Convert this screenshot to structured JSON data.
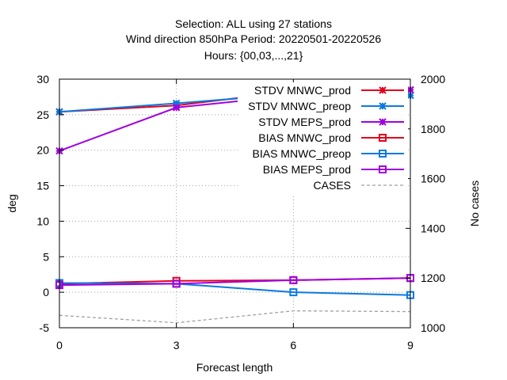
{
  "chart_data": {
    "type": "line",
    "title_lines": [
      "Selection: ALL using    27 stations",
      "Wind direction 850hPa   Period: 20220501-20220526",
      "Hours: {00,03,...,21}"
    ],
    "xlabel": "Forecast length",
    "ylabel": "deg",
    "y2label": "No cases",
    "x": [
      0,
      3,
      6,
      9
    ],
    "xlim": [
      0,
      9
    ],
    "xticks": [
      0,
      3,
      6,
      9
    ],
    "ylim": [
      -5,
      30
    ],
    "yticks": [
      -5,
      0,
      5,
      10,
      15,
      20,
      25,
      30
    ],
    "y2lim": [
      1000,
      2000
    ],
    "y2ticks": [
      1000,
      1200,
      1400,
      1600,
      1800,
      2000
    ],
    "grid": true,
    "legend_position": "top-right",
    "series": [
      {
        "name": "STDV MNWC_prod",
        "axis": "y",
        "color": "#e4001c",
        "marker": "star",
        "dash": "",
        "x": [
          0,
          3,
          6,
          9
        ],
        "values": [
          25.4,
          26.3,
          28.3,
          28.5
        ]
      },
      {
        "name": "STDV MNWC_preop",
        "axis": "y",
        "color": "#0b79e0",
        "marker": "star",
        "dash": "",
        "x": [
          0,
          3,
          6,
          9
        ],
        "values": [
          25.4,
          26.6,
          27.9,
          27.7
        ]
      },
      {
        "name": "STDV MEPS_prod",
        "axis": "y",
        "color": "#a100e0",
        "marker": "star",
        "dash": "",
        "x": [
          0,
          3,
          6,
          9
        ],
        "values": [
          19.9,
          26.0,
          27.7,
          28.5
        ]
      },
      {
        "name": "BIAS MNWC_prod",
        "axis": "y",
        "color": "#e4001c",
        "marker": "square",
        "dash": "",
        "x": [
          0,
          3,
          6,
          9
        ],
        "values": [
          1.2,
          1.6,
          1.7,
          2.0
        ]
      },
      {
        "name": "BIAS MNWC_preop",
        "axis": "y",
        "color": "#0b79e0",
        "marker": "square",
        "dash": "",
        "x": [
          0,
          3,
          6,
          9
        ],
        "values": [
          1.3,
          1.2,
          0.0,
          -0.4
        ]
      },
      {
        "name": "BIAS MEPS_prod",
        "axis": "y",
        "color": "#a100e0",
        "marker": "square",
        "dash": "",
        "x": [
          0,
          3,
          6,
          9
        ],
        "values": [
          1.0,
          1.2,
          1.7,
          2.0
        ]
      },
      {
        "name": "CASES",
        "axis": "y2",
        "color": "#a0a0a0",
        "marker": "none",
        "dash": "4,3",
        "x": [
          0,
          3,
          6,
          9
        ],
        "values": [
          1050,
          1020,
          1068,
          1065
        ]
      }
    ]
  }
}
